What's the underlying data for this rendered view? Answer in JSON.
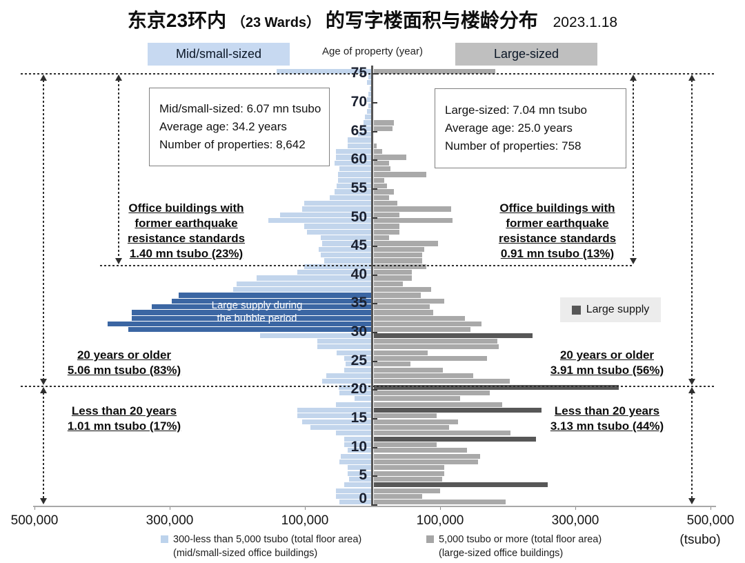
{
  "header": {
    "title_cjk_left": "东京23环内",
    "title_paren": "（23 Wards）",
    "title_cjk_right": "的写字楼面积与楼龄分布",
    "date": "2023.1.18"
  },
  "legend_top": {
    "left": "Mid/small-sized",
    "center": "Age of property (year)",
    "right": "Large-sized"
  },
  "info_left": {
    "line1": "Mid/small-sized: 6.07 mn tsubo",
    "line2": "Average age: 34.2 years",
    "line3": "Number of properties: 8,642"
  },
  "info_right": {
    "line1": "Large-sized: 7.04 mn tsubo",
    "line2": "Average age: 25.0 years",
    "line3": "Number of properties: 758"
  },
  "annotations": {
    "left_quake": {
      "l1": "Office buildings with",
      "l2": "former earthquake",
      "l3": "resistance standards",
      "l4": "1.40 mn tsubo (23%)"
    },
    "right_quake": {
      "l1": "Office buildings with",
      "l2": "former earthquake",
      "l3": "resistance standards",
      "l4": "0.91 mn tsubo (13%)"
    },
    "left_older": {
      "l1": "20 years or older",
      "l2": "5.06 mn tsubo (83%)"
    },
    "left_younger": {
      "l1": "Less than 20 years",
      "l2": "1.01 mn tsubo (17%)"
    },
    "right_older": {
      "l1": "20 years or older",
      "l2": "3.91 mn tsubo (56%)"
    },
    "right_younger": {
      "l1": "Less than 20 years",
      "l2": "3.13 mn tsubo (44%)"
    },
    "bubble": {
      "l1": "Large supply during",
      "l2": "the bubble period"
    },
    "large_supply_legend": "Large supply"
  },
  "axis": {
    "x_labels": [
      "500,000",
      "300,000",
      "100,000",
      "100,000",
      "300,000",
      "500,000"
    ],
    "unit": "(tsubo)"
  },
  "legend_bottom": {
    "left_l1": "300-less than 5,000 tsubo (total floor area)",
    "left_l2": "(mid/small-sized office buildings)",
    "right_l1": "5,000 tsubo or more (total floor area)",
    "right_l2": "(large-sized office buildings)"
  },
  "colors": {
    "mid_small": "#c2d5ec",
    "mid_small_highlight": "#3b66a3",
    "large": "#a9a9a9",
    "large_highlight": "#575757",
    "legend_blue_bg": "#c7d9f1",
    "legend_gray_bg": "#bfbfbf"
  },
  "chart_data": {
    "type": "bar",
    "orientation": "horizontal-pyramid",
    "title": "东京23环内（23 Wards）的写字楼面积与楼龄分布",
    "date": "2023.1.18",
    "center_axis_label": "Age of property (year)",
    "x_unit": "tsubo",
    "x_tick_values": [
      500000,
      300000,
      100000,
      100000,
      300000,
      500000
    ],
    "x_max": 500000,
    "age_ticks": [
      0,
      5,
      10,
      15,
      20,
      25,
      30,
      35,
      40,
      45,
      50,
      55,
      60,
      65,
      70,
      75
    ],
    "boundary_lines_age": [
      75,
      41.7,
      20
    ],
    "series": [
      {
        "name": "Mid/small-sized",
        "side": "left",
        "legend": "300-less than 5,000 tsubo (total floor area) (mid/small-sized office buildings)",
        "total": "6.07 mn tsubo",
        "average_age_years": 34.2,
        "number_of_properties": 8642,
        "color": "#c2d5ec",
        "highlight_color": "#3b66a3",
        "highlight_ages": [
          30,
          31,
          32,
          33,
          34,
          35,
          36
        ],
        "highlight_label": "Large supply during the bubble period",
        "values_thousand_tsubo_by_age": [
          47,
          53,
          53,
          40,
          33,
          35,
          35,
          47,
          45,
          35,
          40,
          40,
          53,
          90,
          103,
          110,
          110,
          53,
          25,
          47,
          48,
          73,
          67,
          40,
          38,
          40,
          52,
          80,
          80,
          165,
          360,
          390,
          355,
          355,
          325,
          295,
          285,
          205,
          200,
          170,
          110,
          100,
          70,
          75,
          78,
          73,
          75,
          95,
          100,
          153,
          135,
          103,
          100,
          62,
          55,
          52,
          50,
          50,
          47,
          55,
          53,
          53,
          35,
          35,
          20,
          15,
          12,
          10,
          7,
          5,
          7,
          5,
          3,
          7,
          5,
          140
        ]
      },
      {
        "name": "Large-sized",
        "side": "right",
        "legend": "5,000 tsubo or more (total floor area) (large-sized office buildings)",
        "total": "7.04 mn tsubo",
        "average_age_years": 25.0,
        "number_of_properties": 758,
        "color": "#a9a9a9",
        "highlight_color": "#575757",
        "highlight_ages": [
          3,
          11,
          16,
          20,
          29
        ],
        "highlight_label": "Large supply",
        "values_thousand_tsubo_by_age": [
          195,
          72,
          98,
          258,
          102,
          105,
          105,
          155,
          158,
          138,
          93,
          240,
          203,
          112,
          125,
          93,
          248,
          190,
          128,
          172,
          363,
          202,
          147,
          103,
          55,
          168,
          80,
          185,
          183,
          235,
          143,
          160,
          135,
          88,
          83,
          105,
          70,
          85,
          43,
          57,
          57,
          78,
          72,
          72,
          75,
          95,
          23,
          38,
          38,
          117,
          38,
          115,
          35,
          23,
          30,
          20,
          16,
          78,
          25,
          23,
          48,
          13,
          5,
          0,
          0,
          28,
          30,
          0,
          0,
          0,
          0,
          0,
          0,
          0,
          0,
          180
        ]
      }
    ]
  }
}
